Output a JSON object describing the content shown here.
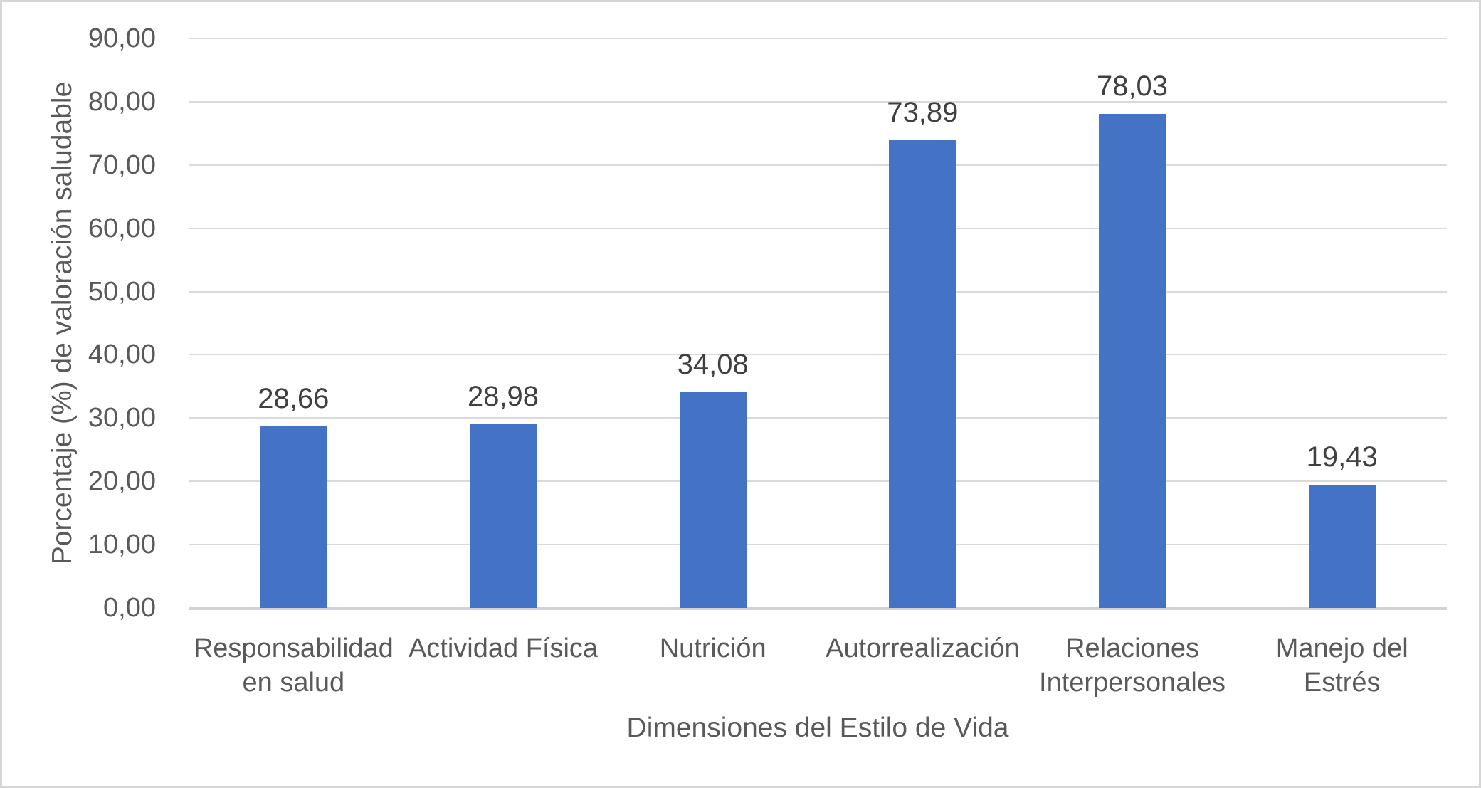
{
  "chart_data": {
    "type": "bar",
    "title": "",
    "xlabel": "Dimensiones del Estilo de Vida",
    "ylabel": "Porcentaje (%) de valoración saludable",
    "categories": [
      "Responsabilidad en salud",
      "Actividad Física",
      "Nutrición",
      "Autorrealización",
      "Relaciones Interpersonales",
      "Manejo del Estrés"
    ],
    "values": [
      28.66,
      28.98,
      34.08,
      73.89,
      78.03,
      19.43
    ],
    "value_labels": [
      "28,66",
      "28,98",
      "34,08",
      "73,89",
      "78,03",
      "19,43"
    ],
    "ylim": [
      0,
      90
    ],
    "y_ticks": [
      {
        "value": 0,
        "label": "0,00"
      },
      {
        "value": 10,
        "label": "10,00"
      },
      {
        "value": 20,
        "label": "20,00"
      },
      {
        "value": 30,
        "label": "30,00"
      },
      {
        "value": 40,
        "label": "40,00"
      },
      {
        "value": 50,
        "label": "50,00"
      },
      {
        "value": 60,
        "label": "60,00"
      },
      {
        "value": 70,
        "label": "70,00"
      },
      {
        "value": 80,
        "label": "80,00"
      },
      {
        "value": 90,
        "label": "90,00"
      }
    ],
    "grid": true,
    "legend": "none",
    "colors": {
      "bar": "#4472C4",
      "gridline": "#DADADA",
      "baseline": "#D2D2D2",
      "axis_text": "#595959",
      "value_label_text": "#404040",
      "border": "#D6D6D6"
    }
  }
}
